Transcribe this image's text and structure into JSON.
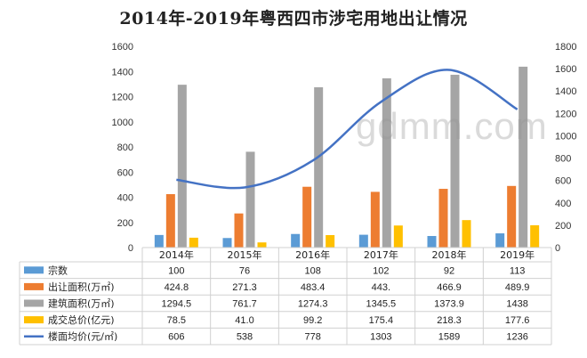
{
  "title": "2014年-2019年粤西四市涉宅用地出让情况",
  "watermark": "gdmm.com",
  "chart_data": {
    "type": "bar",
    "title": "2014年-2019年粤西四市涉宅用地出让情况",
    "categories": [
      "2014年",
      "2015年",
      "2016年",
      "2017年",
      "2018年",
      "2019年"
    ],
    "ylim_left": [
      0,
      1600
    ],
    "ylim_right": [
      0,
      1800
    ],
    "yticks_left": [
      "0",
      "200",
      "400",
      "600",
      "800",
      "1000",
      "1200",
      "1400",
      "1600"
    ],
    "yticks_right": [
      "0",
      "200",
      "400",
      "600",
      "800",
      "1000",
      "1200",
      "1400",
      "1600",
      "1800"
    ],
    "grid": false,
    "legend": "data-table",
    "series": [
      {
        "name": "宗数",
        "type": "bar",
        "axis": "left",
        "color": "#5b9bd5",
        "values": [
          100,
          76,
          108,
          102,
          92,
          113
        ],
        "labels": [
          "100",
          "76",
          "108",
          "102",
          "92",
          "113"
        ]
      },
      {
        "name": "出让面积(万㎡)",
        "type": "bar",
        "axis": "left",
        "color": "#ed7d31",
        "values": [
          424.8,
          271.3,
          483.4,
          443,
          466.9,
          489.9
        ],
        "labels": [
          "424.8",
          "271.3",
          "483.4",
          "443.",
          "466.9",
          "489.9"
        ]
      },
      {
        "name": "建筑面积(万㎡)",
        "type": "bar",
        "axis": "left",
        "color": "#a5a5a5",
        "values": [
          1294.5,
          761.7,
          1274.3,
          1345.5,
          1373.9,
          1438
        ],
        "labels": [
          "1294.5",
          "761.7",
          "1274.3",
          "1345.5",
          "1373.9",
          "1438"
        ]
      },
      {
        "name": "成交总价(亿元)",
        "type": "bar",
        "axis": "left",
        "color": "#ffc000",
        "values": [
          78.5,
          41.0,
          99.2,
          175.4,
          218.3,
          177.6
        ],
        "labels": [
          "78.5",
          "41.0",
          "99.2",
          "175.4",
          "218.3",
          "177.6"
        ]
      },
      {
        "name": "楼面均价(元/㎡)",
        "type": "line",
        "axis": "right",
        "color": "#4472c4",
        "values": [
          606,
          538,
          778,
          1303,
          1589,
          1236
        ],
        "labels": [
          "606",
          "538",
          "778",
          "1303",
          "1589",
          "1236"
        ]
      }
    ]
  }
}
